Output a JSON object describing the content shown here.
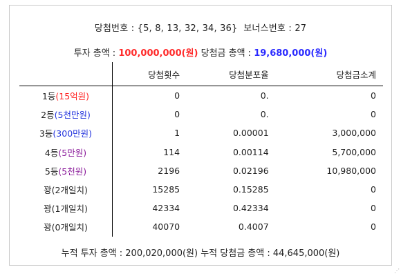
{
  "header": {
    "winning_label": "당첨번호 : ",
    "winning_numbers": "{5, 8, 13, 32, 34, 36}",
    "bonus_label": "보너스번호 : ",
    "bonus_number": "27"
  },
  "summary": {
    "invest_label": "투자 총액 : ",
    "invest_amount": "100,000,000(원)",
    "prize_label": "당첨금 총액 : ",
    "prize_amount": "19,680,000(원)"
  },
  "table": {
    "columns": [
      "",
      "당첨횟수",
      "당첨분포율",
      "당첨금소계"
    ],
    "rows": [
      {
        "rank": "1등",
        "rank_note": "(15억원)",
        "note_color": "#ff2222",
        "count": "0",
        "rate": "0.",
        "subtotal": "0"
      },
      {
        "rank": "2등",
        "rank_note": "(5천만원)",
        "note_color": "#2233dd",
        "count": "0",
        "rate": "0.",
        "subtotal": "0"
      },
      {
        "rank": "3등",
        "rank_note": "(300만원)",
        "note_color": "#2233dd",
        "count": "1",
        "rate": "0.00001",
        "subtotal": "3,000,000"
      },
      {
        "rank": "4등",
        "rank_note": "(5만원)",
        "note_color": "#8a1a9a",
        "count": "114",
        "rate": "0.00114",
        "subtotal": "5,700,000"
      },
      {
        "rank": "5등",
        "rank_note": "(5천원)",
        "note_color": "#8a1a9a",
        "count": "2196",
        "rate": "0.02196",
        "subtotal": "10,980,000"
      },
      {
        "rank": "꽝(2개일치)",
        "rank_note": "",
        "note_color": "",
        "count": "15285",
        "rate": "0.15285",
        "subtotal": "0"
      },
      {
        "rank": "꽝(1개일치)",
        "rank_note": "",
        "note_color": "",
        "count": "42334",
        "rate": "0.42334",
        "subtotal": "0"
      },
      {
        "rank": "꽝(0개일치)",
        "rank_note": "",
        "note_color": "",
        "count": "40070",
        "rate": "0.4007",
        "subtotal": "0"
      }
    ]
  },
  "footer": {
    "cumulative": "누적 투자 총액 : 200,020,000(원)  누적 당첨금 총액 : 44,645,000(원)"
  },
  "colors": {
    "invest_red": "#ff2a2a",
    "prize_blue": "#2a2aff"
  }
}
